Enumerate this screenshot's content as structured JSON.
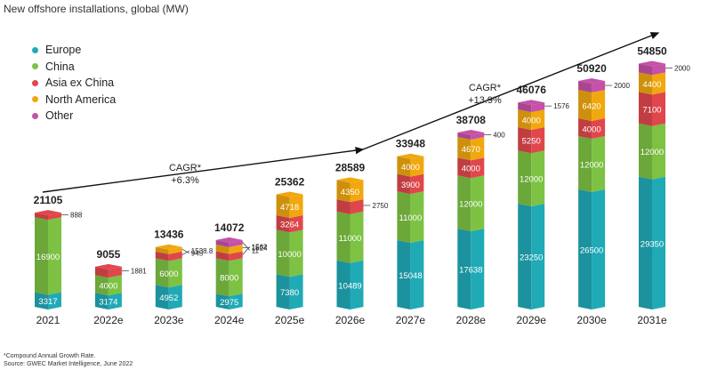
{
  "title": "New offshore installations, global (MW)",
  "legend": {
    "items": [
      {
        "label": "Europe",
        "color": "#1faab6"
      },
      {
        "label": "China",
        "color": "#7dc243"
      },
      {
        "label": "Asia ex China",
        "color": "#e0474c"
      },
      {
        "label": "North America",
        "color": "#f0a80e"
      },
      {
        "label": "Other",
        "color": "#c551a8"
      }
    ]
  },
  "chart_data": {
    "type": "bar",
    "stacked": true,
    "title": "New offshore installations, global (MW)",
    "xlabel": "",
    "ylabel": "MW",
    "ylim": [
      0,
      60000
    ],
    "categories": [
      "2021",
      "2022e",
      "2023e",
      "2024e",
      "2025e",
      "2026e",
      "2027e",
      "2028e",
      "2029e",
      "2030e",
      "2031e"
    ],
    "series": [
      {
        "name": "Europe",
        "values": [
          3317,
          3174,
          4952,
          2975,
          7380,
          10489,
          15048,
          17638,
          23250,
          26500,
          29350
        ]
      },
      {
        "name": "China",
        "values": [
          16900,
          4000,
          6000,
          8000,
          10000,
          11000,
          11000,
          12000,
          12000,
          12000,
          12000
        ]
      },
      {
        "name": "Asia ex China",
        "values": [
          888,
          1881,
          1538.8,
          1562,
          3264,
          2750,
          3900,
          4000,
          5250,
          4000,
          7100
        ]
      },
      {
        "name": "North America",
        "values": [
          0,
          0,
          945,
          1524,
          4718,
          4350,
          4000,
          4670,
          4000,
          6420,
          4400
        ]
      },
      {
        "name": "Other",
        "values": [
          0,
          0,
          0,
          11,
          0,
          0,
          0,
          400,
          1576,
          2000,
          2000
        ]
      }
    ],
    "totals": [
      21105,
      9055,
      13436,
      14072,
      25362,
      28589,
      33948,
      38708,
      46076,
      50920,
      54850
    ],
    "segment_labels": [
      [
        "3317",
        "16900",
        "888",
        null,
        null
      ],
      [
        "3174",
        "4000",
        "1881",
        null,
        null
      ],
      [
        "4952",
        "6000",
        "1538.8",
        "945",
        null
      ],
      [
        "2975",
        "8000",
        "1562",
        "1524",
        "11"
      ],
      [
        "7380",
        "10000",
        "3264",
        "4718",
        null
      ],
      [
        "10489",
        "11000",
        "2750",
        "4350",
        null
      ],
      [
        "15048",
        "11000",
        "3900",
        "4000",
        null
      ],
      [
        "17638",
        "12000",
        "4000",
        "4670",
        "400"
      ],
      [
        "23250",
        "12000",
        "5250",
        "4000",
        "1576"
      ],
      [
        "26500",
        "12000",
        "4000",
        "6420",
        "2000"
      ],
      [
        "29350",
        "12000",
        "7100",
        "4400",
        "2000"
      ]
    ],
    "annotations": [
      {
        "text": "CAGR*",
        "subtext": "+6.3%"
      },
      {
        "text": "CAGR*",
        "subtext": "+13.9%"
      }
    ]
  },
  "footnotes": {
    "cagr_note": "*Compound Annual Growth Rate.",
    "source": "Source: GWEC Market Intelligence, June 2022"
  }
}
